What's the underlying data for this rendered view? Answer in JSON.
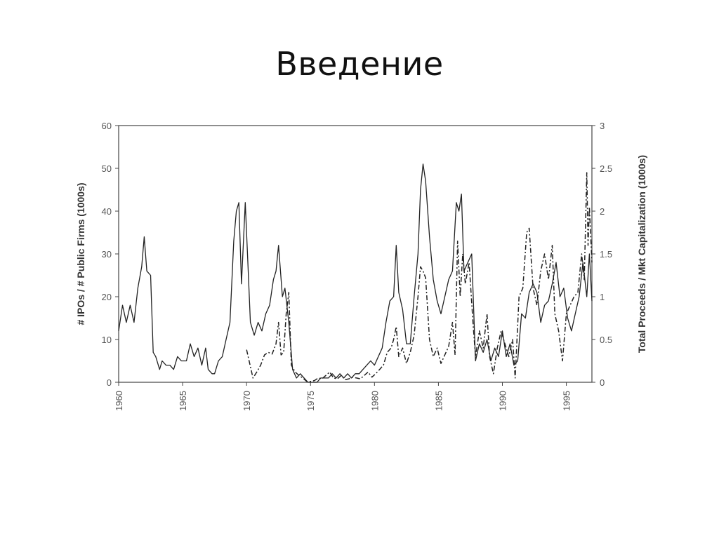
{
  "slide": {
    "title": "Введение"
  },
  "chart_data": {
    "type": "line",
    "title": "",
    "xlabel": "",
    "ylabel": "# IPOs / # Public Firms (1000s)",
    "y2label": "Total Proceeds / Mkt Capitalization (1000s)",
    "xlim": [
      1960,
      1997
    ],
    "ylim": [
      0,
      60
    ],
    "y2lim": [
      0,
      3
    ],
    "x_ticks": [
      "1960",
      "1965",
      "1970",
      "1975",
      "1980",
      "1985",
      "1990",
      "1995"
    ],
    "y_ticks": [
      "0",
      "10",
      "20",
      "30",
      "40",
      "50",
      "60"
    ],
    "y2_ticks": [
      "0",
      "0.5",
      "1",
      "1.5",
      "2",
      "2.5",
      "3"
    ],
    "grid": false,
    "legend": "none",
    "colors": {
      "solid": "#222222",
      "dashed": "#222222",
      "axis": "#444444"
    },
    "series": [
      {
        "axis": "left",
        "style": "solid",
        "points": [
          [
            1960.0,
            12
          ],
          [
            1960.3,
            18
          ],
          [
            1960.6,
            14
          ],
          [
            1960.9,
            18
          ],
          [
            1961.2,
            14
          ],
          [
            1961.5,
            22
          ],
          [
            1961.8,
            27
          ],
          [
            1962.0,
            34
          ],
          [
            1962.2,
            26
          ],
          [
            1962.5,
            25
          ],
          [
            1962.7,
            7
          ],
          [
            1962.9,
            6
          ],
          [
            1963.2,
            3
          ],
          [
            1963.4,
            5
          ],
          [
            1963.7,
            4
          ],
          [
            1964.0,
            4
          ],
          [
            1964.3,
            3
          ],
          [
            1964.6,
            6
          ],
          [
            1964.9,
            5
          ],
          [
            1965.3,
            5
          ],
          [
            1965.6,
            9
          ],
          [
            1965.9,
            6
          ],
          [
            1966.2,
            8
          ],
          [
            1966.5,
            4
          ],
          [
            1966.8,
            8
          ],
          [
            1967.0,
            3
          ],
          [
            1967.3,
            2
          ],
          [
            1967.5,
            2
          ],
          [
            1967.8,
            5
          ],
          [
            1968.1,
            6
          ],
          [
            1968.4,
            10
          ],
          [
            1968.7,
            14
          ],
          [
            1969.0,
            33
          ],
          [
            1969.2,
            40
          ],
          [
            1969.4,
            42
          ],
          [
            1969.6,
            23
          ],
          [
            1969.9,
            42
          ],
          [
            1970.1,
            28
          ],
          [
            1970.3,
            14
          ],
          [
            1970.6,
            11
          ],
          [
            1970.9,
            14
          ],
          [
            1971.2,
            12
          ],
          [
            1971.5,
            16
          ],
          [
            1971.8,
            18
          ],
          [
            1972.1,
            24
          ],
          [
            1972.3,
            26
          ],
          [
            1972.5,
            32
          ],
          [
            1972.8,
            20
          ],
          [
            1973.0,
            22
          ],
          [
            1973.3,
            14
          ],
          [
            1973.6,
            3
          ],
          [
            1973.9,
            1
          ],
          [
            1974.2,
            2
          ],
          [
            1974.5,
            1
          ],
          [
            1974.8,
            0
          ],
          [
            1975.2,
            0
          ],
          [
            1975.5,
            0
          ],
          [
            1975.8,
            1
          ],
          [
            1976.1,
            1
          ],
          [
            1976.4,
            1
          ],
          [
            1976.7,
            2
          ],
          [
            1977.0,
            1
          ],
          [
            1977.3,
            2
          ],
          [
            1977.6,
            1
          ],
          [
            1977.9,
            2
          ],
          [
            1978.2,
            1
          ],
          [
            1978.5,
            2
          ],
          [
            1978.8,
            2
          ],
          [
            1979.1,
            3
          ],
          [
            1979.4,
            4
          ],
          [
            1979.7,
            5
          ],
          [
            1980.0,
            4
          ],
          [
            1980.3,
            6
          ],
          [
            1980.6,
            8
          ],
          [
            1980.9,
            14
          ],
          [
            1981.2,
            19
          ],
          [
            1981.5,
            20
          ],
          [
            1981.7,
            32
          ],
          [
            1981.9,
            21
          ],
          [
            1982.2,
            17
          ],
          [
            1982.5,
            9
          ],
          [
            1982.8,
            9
          ],
          [
            1983.1,
            20
          ],
          [
            1983.4,
            30
          ],
          [
            1983.6,
            45
          ],
          [
            1983.8,
            51
          ],
          [
            1984.0,
            47
          ],
          [
            1984.3,
            34
          ],
          [
            1984.6,
            24
          ],
          [
            1984.9,
            19
          ],
          [
            1985.2,
            16
          ],
          [
            1985.5,
            20
          ],
          [
            1985.8,
            24
          ],
          [
            1986.1,
            26
          ],
          [
            1986.4,
            42
          ],
          [
            1986.6,
            40
          ],
          [
            1986.8,
            44
          ],
          [
            1987.0,
            26
          ],
          [
            1987.3,
            28
          ],
          [
            1987.6,
            30
          ],
          [
            1987.9,
            5
          ],
          [
            1988.2,
            9
          ],
          [
            1988.5,
            7
          ],
          [
            1988.8,
            10
          ],
          [
            1989.1,
            5
          ],
          [
            1989.4,
            8
          ],
          [
            1989.7,
            6
          ],
          [
            1990.0,
            12
          ],
          [
            1990.3,
            6
          ],
          [
            1990.6,
            9
          ],
          [
            1990.9,
            4
          ],
          [
            1991.2,
            5
          ],
          [
            1991.5,
            16
          ],
          [
            1991.8,
            15
          ],
          [
            1992.1,
            21
          ],
          [
            1992.4,
            23
          ],
          [
            1992.7,
            21
          ],
          [
            1993.0,
            14
          ],
          [
            1993.3,
            18
          ],
          [
            1993.6,
            19
          ],
          [
            1993.9,
            23
          ],
          [
            1994.2,
            28
          ],
          [
            1994.5,
            20
          ],
          [
            1994.8,
            22
          ],
          [
            1995.1,
            15
          ],
          [
            1995.4,
            12
          ],
          [
            1995.7,
            16
          ],
          [
            1996.0,
            20
          ],
          [
            1996.3,
            28
          ],
          [
            1996.6,
            20
          ],
          [
            1996.8,
            30
          ],
          [
            1997.0,
            19
          ]
        ]
      },
      {
        "axis": "right",
        "style": "dashdot",
        "points": [
          [
            1970.0,
            0.38
          ],
          [
            1970.2,
            0.25
          ],
          [
            1970.5,
            0.05
          ],
          [
            1970.8,
            0.12
          ],
          [
            1971.1,
            0.2
          ],
          [
            1971.4,
            0.32
          ],
          [
            1971.7,
            0.35
          ],
          [
            1972.0,
            0.33
          ],
          [
            1972.3,
            0.45
          ],
          [
            1972.5,
            0.7
          ],
          [
            1972.7,
            0.32
          ],
          [
            1972.9,
            0.35
          ],
          [
            1973.1,
            0.8
          ],
          [
            1973.3,
            1.05
          ],
          [
            1973.5,
            0.2
          ],
          [
            1973.8,
            0.12
          ],
          [
            1974.1,
            0.08
          ],
          [
            1974.4,
            0.05
          ],
          [
            1974.7,
            0.01
          ],
          [
            1975.0,
            0.01
          ],
          [
            1975.3,
            0.02
          ],
          [
            1975.6,
            0.05
          ],
          [
            1975.9,
            0.04
          ],
          [
            1976.2,
            0.08
          ],
          [
            1976.5,
            0.12
          ],
          [
            1976.8,
            0.05
          ],
          [
            1977.1,
            0.04
          ],
          [
            1977.4,
            0.08
          ],
          [
            1977.7,
            0.03
          ],
          [
            1978.0,
            0.04
          ],
          [
            1978.3,
            0.06
          ],
          [
            1978.6,
            0.05
          ],
          [
            1978.9,
            0.04
          ],
          [
            1979.2,
            0.08
          ],
          [
            1979.5,
            0.12
          ],
          [
            1979.8,
            0.06
          ],
          [
            1980.1,
            0.1
          ],
          [
            1980.4,
            0.15
          ],
          [
            1980.7,
            0.2
          ],
          [
            1981.0,
            0.35
          ],
          [
            1981.3,
            0.4
          ],
          [
            1981.5,
            0.5
          ],
          [
            1981.7,
            0.65
          ],
          [
            1981.9,
            0.3
          ],
          [
            1982.2,
            0.4
          ],
          [
            1982.5,
            0.22
          ],
          [
            1982.8,
            0.35
          ],
          [
            1983.1,
            0.55
          ],
          [
            1983.4,
            1.0
          ],
          [
            1983.6,
            1.35
          ],
          [
            1983.8,
            1.3
          ],
          [
            1984.0,
            1.22
          ],
          [
            1984.3,
            0.5
          ],
          [
            1984.6,
            0.3
          ],
          [
            1984.9,
            0.4
          ],
          [
            1985.2,
            0.22
          ],
          [
            1985.5,
            0.32
          ],
          [
            1985.8,
            0.42
          ],
          [
            1986.1,
            0.7
          ],
          [
            1986.3,
            0.32
          ],
          [
            1986.5,
            1.65
          ],
          [
            1986.7,
            1.0
          ],
          [
            1986.9,
            1.5
          ],
          [
            1987.1,
            1.15
          ],
          [
            1987.4,
            1.4
          ],
          [
            1987.7,
            0.7
          ],
          [
            1987.9,
            0.3
          ],
          [
            1988.2,
            0.6
          ],
          [
            1988.5,
            0.4
          ],
          [
            1988.8,
            0.8
          ],
          [
            1989.0,
            0.3
          ],
          [
            1989.3,
            0.1
          ],
          [
            1989.6,
            0.4
          ],
          [
            1989.9,
            0.6
          ],
          [
            1990.2,
            0.45
          ],
          [
            1990.5,
            0.3
          ],
          [
            1990.8,
            0.5
          ],
          [
            1991.0,
            0.05
          ],
          [
            1991.3,
            1.0
          ],
          [
            1991.6,
            1.1
          ],
          [
            1991.9,
            1.75
          ],
          [
            1992.1,
            1.8
          ],
          [
            1992.4,
            1.1
          ],
          [
            1992.7,
            0.9
          ],
          [
            1993.0,
            1.3
          ],
          [
            1993.3,
            1.5
          ],
          [
            1993.6,
            1.2
          ],
          [
            1993.9,
            1.6
          ],
          [
            1994.1,
            0.8
          ],
          [
            1994.4,
            0.6
          ],
          [
            1994.7,
            0.25
          ],
          [
            1995.0,
            0.8
          ],
          [
            1995.3,
            0.9
          ],
          [
            1995.6,
            1.0
          ],
          [
            1995.9,
            1.05
          ],
          [
            1996.2,
            1.5
          ],
          [
            1996.4,
            1.2
          ],
          [
            1996.6,
            2.45
          ],
          [
            1996.7,
            1.6
          ],
          [
            1996.8,
            2.05
          ],
          [
            1997.0,
            1.4
          ]
        ]
      }
    ]
  }
}
